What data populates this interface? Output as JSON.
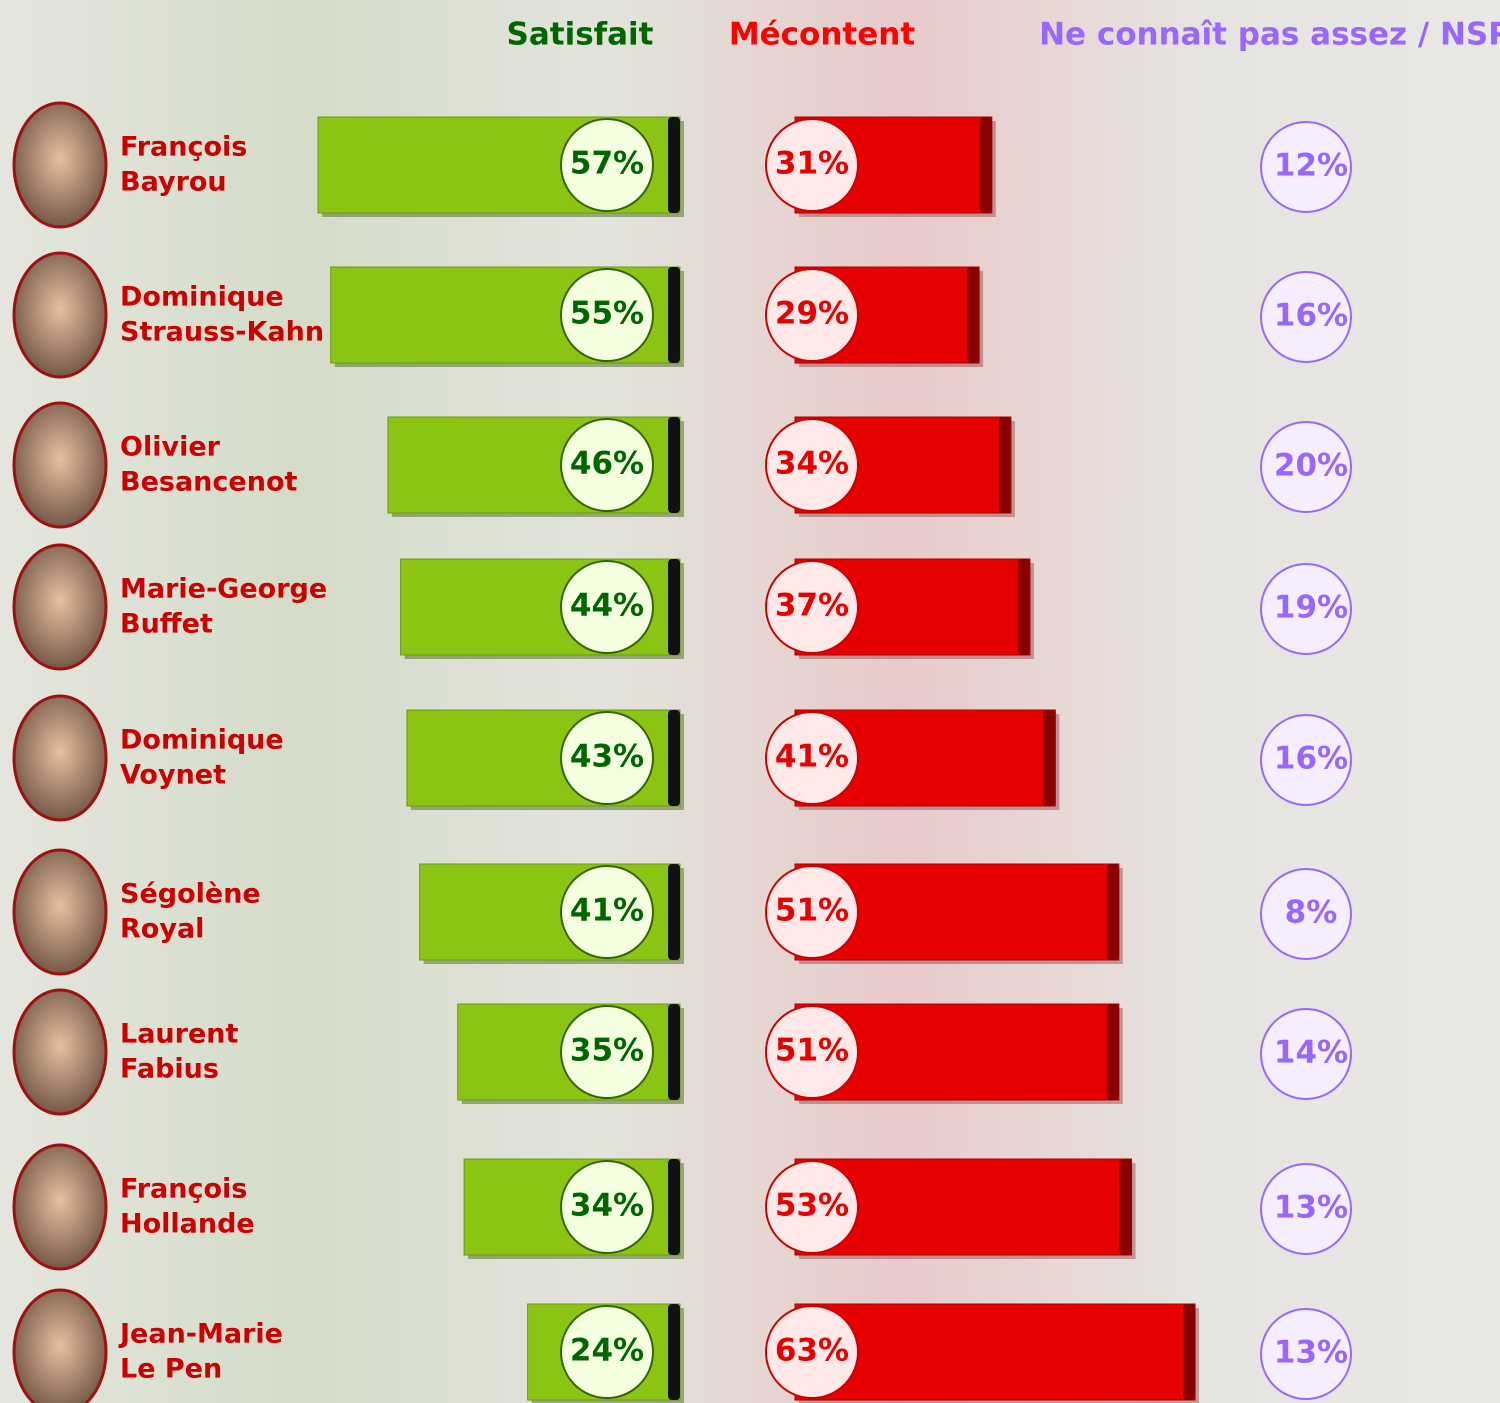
{
  "chart_data": {
    "type": "bar",
    "categories": [
      [
        "François",
        "Bayrou"
      ],
      [
        "Dominique",
        "Strauss-Kahn"
      ],
      [
        "Olivier",
        "Besancenot"
      ],
      [
        "Marie-George",
        "Buffet"
      ],
      [
        "Dominique",
        "Voynet"
      ],
      [
        "Ségolène",
        "Royal"
      ],
      [
        "Laurent",
        "Fabius"
      ],
      [
        "François",
        "Hollande"
      ],
      [
        "Jean-Marie",
        "Le Pen"
      ]
    ],
    "series": [
      {
        "name": "Satisfait",
        "color": "#8cc414",
        "values": [
          57,
          55,
          46,
          44,
          43,
          41,
          35,
          34,
          24
        ],
        "value_labels": [
          "57%",
          "55%",
          "46%",
          "44%",
          "43%",
          "41%",
          "35%",
          "34%",
          "24%"
        ]
      },
      {
        "name": "Mécontent",
        "color": "#e60000",
        "values": [
          31,
          29,
          34,
          37,
          41,
          51,
          51,
          53,
          63
        ],
        "value_labels": [
          "31%",
          "29%",
          "34%",
          "37%",
          "41%",
          "51%",
          "51%",
          "53%",
          "63%"
        ]
      },
      {
        "name": "Ne connaît pas assez / NSP",
        "color": "#9966ff",
        "values": [
          12,
          16,
          20,
          19,
          16,
          8,
          14,
          13,
          13
        ],
        "value_labels": [
          "12%",
          "16%",
          "20%",
          "19%",
          "16%",
          "8%",
          "14%",
          "13%",
          "13%"
        ]
      }
    ]
  }
}
